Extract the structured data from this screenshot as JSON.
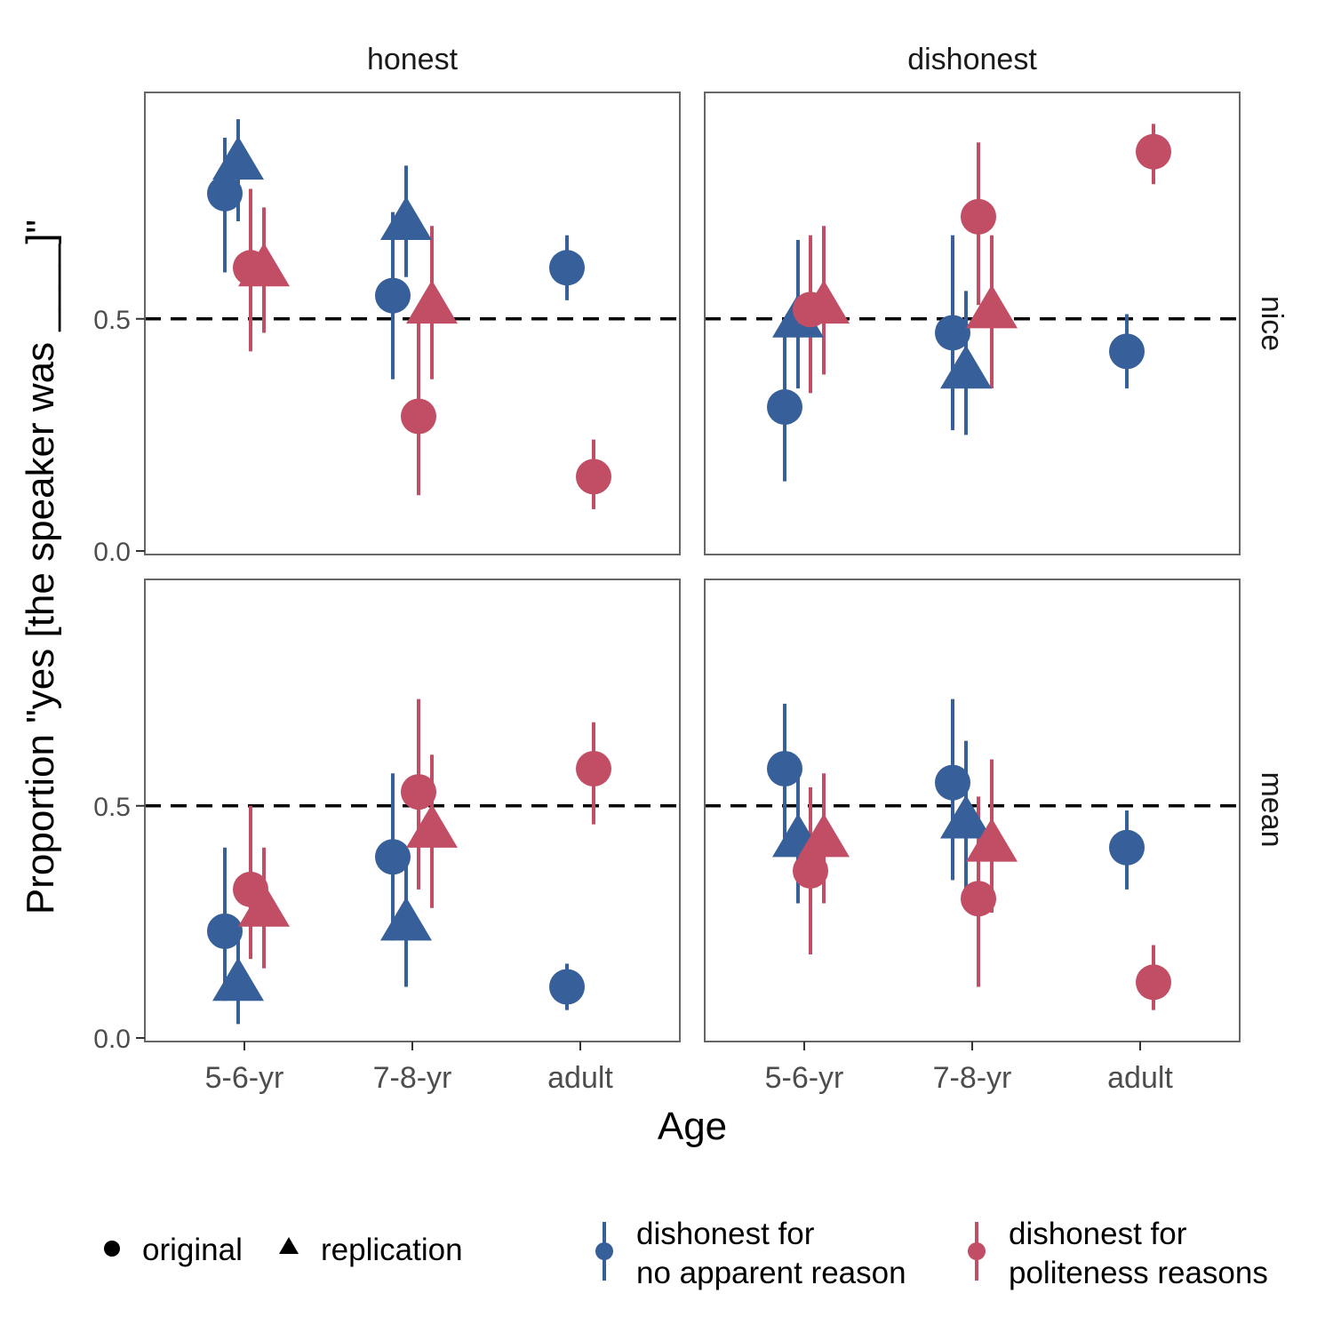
{
  "chart_data": {
    "type": "scatter",
    "xlabel": "Age",
    "ylabel": "Proportion \"yes [the speaker was ____]\"",
    "categories": [
      "5-6-yr",
      "7-8-yr",
      "adult"
    ],
    "yticks": [
      "0.0",
      "0.5"
    ],
    "yticks_values": [
      0,
      0.5
    ],
    "ylim": [
      0,
      0.98
    ],
    "reference_line": 0.5,
    "column_strips": [
      "honest",
      "dishonest"
    ],
    "row_strips": [
      "nice",
      "mean"
    ],
    "legend": {
      "shape_entries": [
        {
          "shape": "circle",
          "label": "original"
        },
        {
          "shape": "triangle",
          "label": "replication"
        }
      ],
      "color_entries": [
        {
          "key": "np",
          "line1": "dishonest for",
          "line2": "no apparent reason",
          "color": "#37609a"
        },
        {
          "key": "pol",
          "line1": "dishonest for",
          "line2": "politeness reasons",
          "color": "#c14e65"
        }
      ]
    },
    "panels": [
      {
        "column": "honest",
        "row": "nice",
        "points": [
          {
            "age": "5-6-yr",
            "reason": "np",
            "study": "original",
            "y": 0.77,
            "lo": 0.6,
            "hi": 0.89
          },
          {
            "age": "5-6-yr",
            "reason": "np",
            "study": "replication",
            "y": 0.84,
            "lo": 0.71,
            "hi": 0.93
          },
          {
            "age": "5-6-yr",
            "reason": "pol",
            "study": "original",
            "y": 0.61,
            "lo": 0.43,
            "hi": 0.78
          },
          {
            "age": "5-6-yr",
            "reason": "pol",
            "study": "replication",
            "y": 0.61,
            "lo": 0.47,
            "hi": 0.74
          },
          {
            "age": "7-8-yr",
            "reason": "np",
            "study": "original",
            "y": 0.55,
            "lo": 0.37,
            "hi": 0.73
          },
          {
            "age": "7-8-yr",
            "reason": "np",
            "study": "replication",
            "y": 0.71,
            "lo": 0.59,
            "hi": 0.83
          },
          {
            "age": "7-8-yr",
            "reason": "pol",
            "study": "original",
            "y": 0.29,
            "lo": 0.12,
            "hi": 0.51
          },
          {
            "age": "7-8-yr",
            "reason": "pol",
            "study": "replication",
            "y": 0.53,
            "lo": 0.37,
            "hi": 0.7
          },
          {
            "age": "adult",
            "reason": "np",
            "study": "original",
            "y": 0.61,
            "lo": 0.54,
            "hi": 0.68
          },
          {
            "age": "adult",
            "reason": "pol",
            "study": "original",
            "y": 0.16,
            "lo": 0.09,
            "hi": 0.24
          }
        ]
      },
      {
        "column": "dishonest",
        "row": "nice",
        "points": [
          {
            "age": "5-6-yr",
            "reason": "np",
            "study": "original",
            "y": 0.31,
            "lo": 0.15,
            "hi": 0.5
          },
          {
            "age": "5-6-yr",
            "reason": "np",
            "study": "replication",
            "y": 0.5,
            "lo": 0.35,
            "hi": 0.67
          },
          {
            "age": "5-6-yr",
            "reason": "pol",
            "study": "original",
            "y": 0.52,
            "lo": 0.34,
            "hi": 0.68
          },
          {
            "age": "5-6-yr",
            "reason": "pol",
            "study": "replication",
            "y": 0.53,
            "lo": 0.38,
            "hi": 0.7
          },
          {
            "age": "7-8-yr",
            "reason": "np",
            "study": "original",
            "y": 0.47,
            "lo": 0.26,
            "hi": 0.68
          },
          {
            "age": "7-8-yr",
            "reason": "np",
            "study": "replication",
            "y": 0.39,
            "lo": 0.25,
            "hi": 0.56
          },
          {
            "age": "7-8-yr",
            "reason": "pol",
            "study": "original",
            "y": 0.72,
            "lo": 0.53,
            "hi": 0.88
          },
          {
            "age": "7-8-yr",
            "reason": "pol",
            "study": "replication",
            "y": 0.52,
            "lo": 0.35,
            "hi": 0.68
          },
          {
            "age": "adult",
            "reason": "np",
            "study": "original",
            "y": 0.43,
            "lo": 0.35,
            "hi": 0.51
          },
          {
            "age": "adult",
            "reason": "pol",
            "study": "original",
            "y": 0.86,
            "lo": 0.79,
            "hi": 0.92
          }
        ]
      },
      {
        "column": "honest",
        "row": "mean",
        "points": [
          {
            "age": "5-6-yr",
            "reason": "np",
            "study": "original",
            "y": 0.23,
            "lo": 0.08,
            "hi": 0.41
          },
          {
            "age": "5-6-yr",
            "reason": "np",
            "study": "replication",
            "y": 0.12,
            "lo": 0.03,
            "hi": 0.24
          },
          {
            "age": "5-6-yr",
            "reason": "pol",
            "study": "original",
            "y": 0.32,
            "lo": 0.17,
            "hi": 0.5
          },
          {
            "age": "5-6-yr",
            "reason": "pol",
            "study": "replication",
            "y": 0.28,
            "lo": 0.15,
            "hi": 0.41
          },
          {
            "age": "7-8-yr",
            "reason": "np",
            "study": "original",
            "y": 0.39,
            "lo": 0.21,
            "hi": 0.57
          },
          {
            "age": "7-8-yr",
            "reason": "np",
            "study": "replication",
            "y": 0.25,
            "lo": 0.11,
            "hi": 0.39
          },
          {
            "age": "7-8-yr",
            "reason": "pol",
            "study": "original",
            "y": 0.53,
            "lo": 0.32,
            "hi": 0.73
          },
          {
            "age": "7-8-yr",
            "reason": "pol",
            "study": "replication",
            "y": 0.45,
            "lo": 0.28,
            "hi": 0.61
          },
          {
            "age": "adult",
            "reason": "np",
            "study": "original",
            "y": 0.11,
            "lo": 0.06,
            "hi": 0.16
          },
          {
            "age": "adult",
            "reason": "pol",
            "study": "original",
            "y": 0.58,
            "lo": 0.46,
            "hi": 0.68
          }
        ]
      },
      {
        "column": "dishonest",
        "row": "mean",
        "points": [
          {
            "age": "5-6-yr",
            "reason": "np",
            "study": "original",
            "y": 0.58,
            "lo": 0.4,
            "hi": 0.72
          },
          {
            "age": "5-6-yr",
            "reason": "np",
            "study": "replication",
            "y": 0.43,
            "lo": 0.29,
            "hi": 0.58
          },
          {
            "age": "5-6-yr",
            "reason": "pol",
            "study": "original",
            "y": 0.36,
            "lo": 0.18,
            "hi": 0.54
          },
          {
            "age": "5-6-yr",
            "reason": "pol",
            "study": "replication",
            "y": 0.43,
            "lo": 0.29,
            "hi": 0.57
          },
          {
            "age": "7-8-yr",
            "reason": "np",
            "study": "original",
            "y": 0.55,
            "lo": 0.34,
            "hi": 0.73
          },
          {
            "age": "7-8-yr",
            "reason": "np",
            "study": "replication",
            "y": 0.47,
            "lo": 0.32,
            "hi": 0.64
          },
          {
            "age": "7-8-yr",
            "reason": "pol",
            "study": "original",
            "y": 0.3,
            "lo": 0.11,
            "hi": 0.52
          },
          {
            "age": "7-8-yr",
            "reason": "pol",
            "study": "replication",
            "y": 0.42,
            "lo": 0.27,
            "hi": 0.6
          },
          {
            "age": "adult",
            "reason": "np",
            "study": "original",
            "y": 0.41,
            "lo": 0.32,
            "hi": 0.49
          },
          {
            "age": "adult",
            "reason": "pol",
            "study": "original",
            "y": 0.12,
            "lo": 0.06,
            "hi": 0.2
          }
        ]
      }
    ]
  }
}
